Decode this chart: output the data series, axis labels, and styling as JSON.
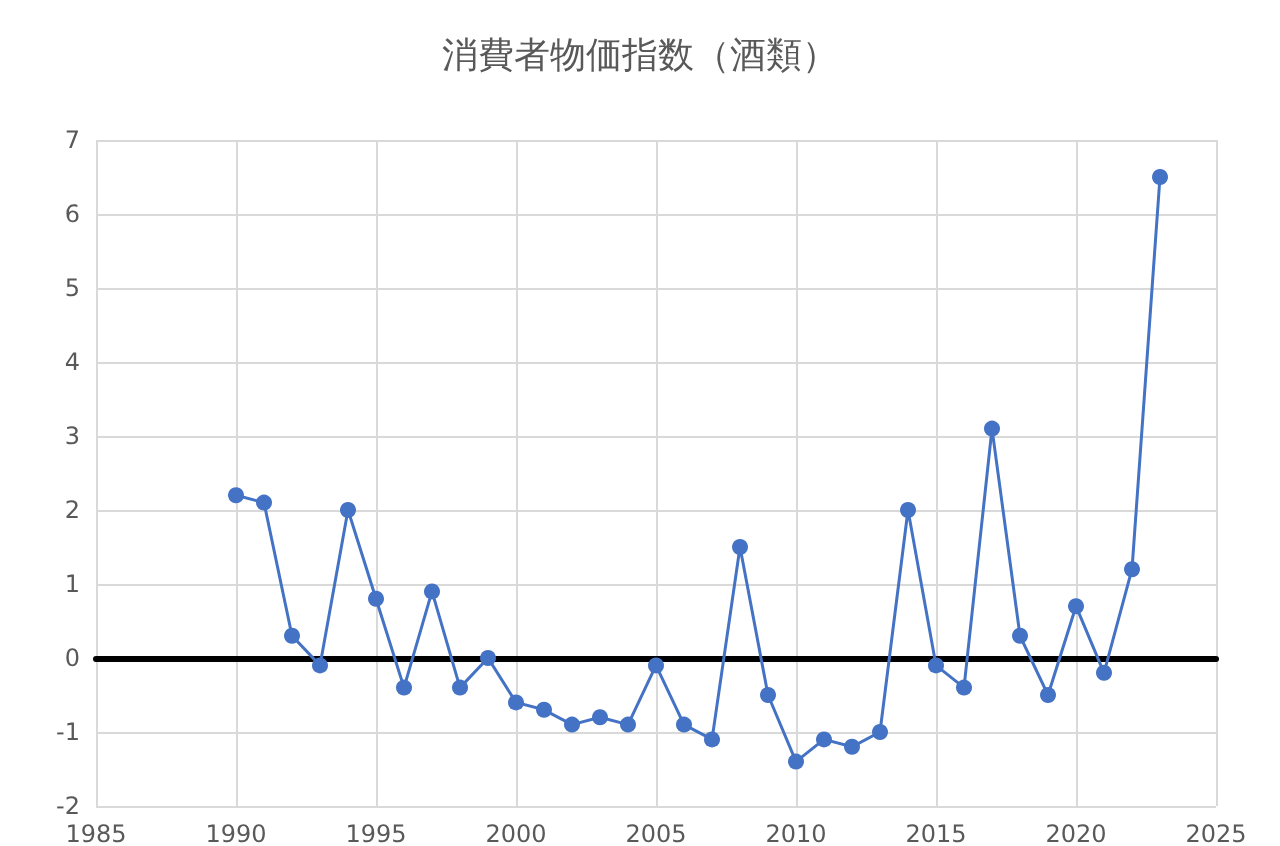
{
  "chart_data": {
    "type": "line",
    "title": "消費者物価指数（酒類）",
    "x": [
      1990,
      1991,
      1992,
      1993,
      1994,
      1995,
      1996,
      1997,
      1998,
      1999,
      2000,
      2001,
      2002,
      2003,
      2004,
      2005,
      2006,
      2007,
      2008,
      2009,
      2010,
      2011,
      2012,
      2013,
      2014,
      2015,
      2016,
      2017,
      2018,
      2019,
      2020,
      2021,
      2022,
      2023
    ],
    "series": [
      {
        "color": "#4472c4",
        "values": [
          2.2,
          2.1,
          0.3,
          -0.1,
          2.0,
          0.8,
          -0.4,
          0.9,
          -0.4,
          0.0,
          -0.6,
          -0.7,
          -0.9,
          -0.8,
          -0.9,
          -0.1,
          -0.9,
          -1.1,
          1.5,
          -0.5,
          -1.4,
          -1.1,
          -1.2,
          -1.0,
          2.0,
          -0.1,
          -0.4,
          3.1,
          0.3,
          -0.5,
          0.7,
          -0.2,
          1.2,
          6.5
        ]
      }
    ],
    "xlim": [
      1985,
      2025
    ],
    "xticks": [
      1985,
      1990,
      1995,
      2000,
      2005,
      2010,
      2015,
      2020,
      2025
    ],
    "ylim": [
      -2,
      7
    ],
    "yticks": [
      -2,
      -1,
      0,
      1,
      2,
      3,
      4,
      5,
      6,
      7
    ],
    "grid": true,
    "marker": "circle",
    "line_style": "solid"
  }
}
